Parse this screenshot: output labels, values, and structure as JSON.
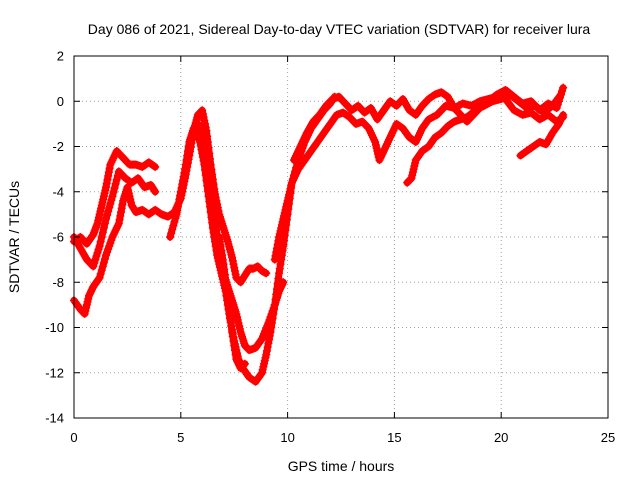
{
  "chart_data": {
    "type": "scatter",
    "title": "Day 086 of 2021, Sidereal Day-to-day VTEC variation (SDTVAR) for receiver lura",
    "xlabel": "GPS time / hours",
    "ylabel": "SDTVAR / TECUs",
    "xlim": [
      0,
      25
    ],
    "ylim": [
      -14,
      2
    ],
    "xticks": [
      0,
      5,
      10,
      15,
      20,
      25
    ],
    "yticks": [
      2,
      0,
      -2,
      -4,
      -6,
      -8,
      -10,
      -12,
      -14
    ],
    "grid": true,
    "marker": "plus",
    "color": "#ff0000",
    "series": [
      {
        "values": [
          [
            0.0,
            -6.2
          ],
          [
            0.3,
            -6.0
          ],
          [
            0.6,
            -6.3
          ],
          [
            0.9,
            -5.9
          ],
          [
            1.1,
            -5.4
          ],
          [
            1.3,
            -4.6
          ],
          [
            1.5,
            -3.8
          ],
          [
            1.7,
            -2.8
          ],
          [
            2.0,
            -2.2
          ],
          [
            2.3,
            -2.5
          ],
          [
            2.6,
            -2.8
          ],
          [
            2.9,
            -2.8
          ],
          [
            3.2,
            -2.9
          ],
          [
            3.5,
            -2.7
          ],
          [
            3.8,
            -2.9
          ]
        ]
      },
      {
        "values": [
          [
            0.0,
            -6.0
          ],
          [
            0.3,
            -6.5
          ],
          [
            0.6,
            -7.0
          ],
          [
            0.9,
            -7.3
          ],
          [
            1.2,
            -6.4
          ],
          [
            1.5,
            -5.2
          ],
          [
            1.8,
            -4.2
          ],
          [
            2.1,
            -3.1
          ],
          [
            2.4,
            -3.4
          ],
          [
            2.7,
            -3.6
          ],
          [
            3.0,
            -3.4
          ],
          [
            3.3,
            -3.8
          ],
          [
            3.6,
            -3.7
          ],
          [
            3.8,
            -4.0
          ]
        ]
      },
      {
        "values": [
          [
            0.0,
            -8.8
          ],
          [
            0.3,
            -9.2
          ],
          [
            0.5,
            -9.4
          ],
          [
            0.7,
            -8.6
          ],
          [
            0.9,
            -8.2
          ],
          [
            1.2,
            -7.8
          ],
          [
            1.5,
            -6.8
          ],
          [
            1.8,
            -6.0
          ],
          [
            2.1,
            -5.4
          ],
          [
            2.3,
            -4.4
          ],
          [
            2.5,
            -3.8
          ],
          [
            2.7,
            -4.6
          ],
          [
            2.9,
            -4.9
          ],
          [
            3.2,
            -4.8
          ],
          [
            3.5,
            -5.0
          ],
          [
            3.8,
            -4.8
          ],
          [
            4.1,
            -5.0
          ],
          [
            4.4,
            -5.1
          ],
          [
            4.7,
            -4.9
          ],
          [
            5.0,
            -4.3
          ],
          [
            5.2,
            -3.4
          ],
          [
            5.4,
            -2.4
          ],
          [
            5.6,
            -1.3
          ],
          [
            5.8,
            -0.6
          ],
          [
            6.0,
            -0.4
          ],
          [
            6.2,
            -1.3
          ],
          [
            6.4,
            -2.8
          ],
          [
            6.6,
            -4.1
          ],
          [
            6.8,
            -5.0
          ],
          [
            7.0,
            -5.6
          ],
          [
            7.2,
            -6.2
          ],
          [
            7.4,
            -6.9
          ],
          [
            7.6,
            -7.8
          ],
          [
            7.8,
            -8.0
          ],
          [
            8.0,
            -7.7
          ],
          [
            8.2,
            -7.4
          ],
          [
            8.4,
            -7.4
          ],
          [
            8.6,
            -7.3
          ],
          [
            8.8,
            -7.5
          ],
          [
            9.0,
            -7.6
          ]
        ]
      },
      {
        "values": [
          [
            4.5,
            -6.0
          ],
          [
            4.8,
            -5.0
          ],
          [
            5.0,
            -4.0
          ],
          [
            5.2,
            -3.0
          ],
          [
            5.4,
            -1.8
          ],
          [
            5.6,
            -1.2
          ],
          [
            5.8,
            -1.0
          ],
          [
            6.0,
            -1.4
          ],
          [
            6.2,
            -2.2
          ],
          [
            6.4,
            -3.6
          ],
          [
            6.6,
            -5.2
          ],
          [
            6.8,
            -6.6
          ],
          [
            7.0,
            -7.6
          ],
          [
            7.2,
            -8.2
          ],
          [
            7.4,
            -8.8
          ],
          [
            7.6,
            -9.4
          ],
          [
            7.8,
            -10.2
          ],
          [
            8.0,
            -10.8
          ],
          [
            8.2,
            -11.0
          ],
          [
            8.5,
            -10.9
          ],
          [
            8.8,
            -10.5
          ],
          [
            9.1,
            -9.8
          ],
          [
            9.4,
            -9.0
          ],
          [
            9.6,
            -8.4
          ],
          [
            9.8,
            -8.0
          ]
        ]
      },
      {
        "values": [
          [
            5.7,
            -1.2
          ],
          [
            5.9,
            -1.8
          ],
          [
            6.1,
            -2.8
          ],
          [
            6.3,
            -4.2
          ],
          [
            6.5,
            -5.6
          ],
          [
            6.7,
            -6.8
          ],
          [
            6.9,
            -7.6
          ],
          [
            7.1,
            -8.4
          ],
          [
            7.3,
            -9.6
          ],
          [
            7.5,
            -10.6
          ],
          [
            7.7,
            -11.4
          ],
          [
            7.9,
            -11.8
          ],
          [
            8.2,
            -12.2
          ],
          [
            8.5,
            -12.4
          ],
          [
            8.8,
            -12.0
          ],
          [
            9.0,
            -11.2
          ],
          [
            9.2,
            -10.2
          ],
          [
            9.4,
            -9.0
          ],
          [
            9.6,
            -7.6
          ],
          [
            9.8,
            -6.4
          ],
          [
            10.0,
            -5.0
          ],
          [
            10.2,
            -3.6
          ],
          [
            10.5,
            -2.6
          ],
          [
            10.8,
            -1.8
          ],
          [
            11.1,
            -1.2
          ],
          [
            11.4,
            -0.8
          ],
          [
            11.7,
            -0.4
          ],
          [
            12.0,
            -0.1
          ],
          [
            12.2,
            0.2
          ]
        ]
      },
      {
        "values": [
          [
            6.8,
            -6.0
          ],
          [
            7.0,
            -7.2
          ],
          [
            7.2,
            -8.6
          ],
          [
            7.4,
            -10.2
          ],
          [
            7.6,
            -11.4
          ],
          [
            7.8,
            -11.8
          ],
          [
            8.0,
            -11.6
          ]
        ]
      },
      {
        "values": [
          [
            9.4,
            -7.0
          ],
          [
            9.6,
            -6.0
          ],
          [
            9.8,
            -5.2
          ],
          [
            10.0,
            -4.4
          ],
          [
            10.2,
            -3.6
          ],
          [
            10.5,
            -3.0
          ],
          [
            10.8,
            -2.6
          ],
          [
            11.1,
            -2.2
          ],
          [
            11.4,
            -1.8
          ],
          [
            11.7,
            -1.4
          ],
          [
            12.0,
            -1.0
          ],
          [
            12.3,
            -0.6
          ],
          [
            12.6,
            -0.5
          ],
          [
            12.9,
            -0.7
          ],
          [
            13.2,
            -1.0
          ],
          [
            13.5,
            -0.9
          ],
          [
            13.8,
            -1.2
          ],
          [
            14.1,
            -1.8
          ],
          [
            14.3,
            -2.6
          ],
          [
            14.5,
            -2.2
          ],
          [
            14.8,
            -1.6
          ],
          [
            15.1,
            -1.0
          ],
          [
            15.4,
            -1.2
          ],
          [
            15.7,
            -1.6
          ],
          [
            16.0,
            -1.8
          ],
          [
            16.3,
            -1.2
          ],
          [
            16.6,
            -0.8
          ],
          [
            17.0,
            -0.6
          ],
          [
            17.4,
            -0.2
          ],
          [
            17.8,
            -0.3
          ],
          [
            18.2,
            -0.1
          ],
          [
            18.6,
            -0.2
          ],
          [
            19.0,
            0.0
          ],
          [
            19.4,
            0.1
          ],
          [
            19.8,
            0.2
          ],
          [
            20.2,
            0.1
          ],
          [
            20.6,
            -0.4
          ],
          [
            21.0,
            -0.6
          ],
          [
            21.4,
            -0.5
          ],
          [
            21.8,
            -0.8
          ],
          [
            22.2,
            -0.6
          ],
          [
            22.6,
            -0.9
          ],
          [
            22.9,
            -0.7
          ]
        ]
      },
      {
        "values": [
          [
            10.3,
            -2.6
          ],
          [
            10.6,
            -2.0
          ],
          [
            10.9,
            -1.4
          ],
          [
            11.2,
            -0.9
          ],
          [
            11.5,
            -0.6
          ],
          [
            11.8,
            -0.2
          ],
          [
            12.1,
            0.1
          ],
          [
            12.4,
            0.2
          ],
          [
            12.7,
            -0.1
          ],
          [
            13.0,
            -0.4
          ],
          [
            13.3,
            -0.2
          ],
          [
            13.6,
            -0.5
          ],
          [
            13.9,
            -0.3
          ],
          [
            14.2,
            -0.8
          ],
          [
            14.5,
            -0.4
          ],
          [
            14.8,
            0.0
          ],
          [
            15.1,
            -0.2
          ],
          [
            15.4,
            0.1
          ],
          [
            15.7,
            -0.4
          ],
          [
            16.0,
            -0.6
          ],
          [
            16.3,
            -0.2
          ],
          [
            16.6,
            0.1
          ],
          [
            16.9,
            0.3
          ],
          [
            17.2,
            0.4
          ],
          [
            17.5,
            0.2
          ],
          [
            17.8,
            -0.3
          ],
          [
            18.1,
            -0.6
          ],
          [
            18.4,
            -0.9
          ],
          [
            18.7,
            -0.6
          ],
          [
            19.0,
            -0.3
          ],
          [
            19.4,
            0.0
          ],
          [
            19.8,
            0.3
          ],
          [
            20.2,
            0.5
          ],
          [
            20.6,
            0.2
          ],
          [
            21.0,
            -0.1
          ],
          [
            21.4,
            0.0
          ],
          [
            21.8,
            -0.4
          ],
          [
            22.2,
            -0.1
          ],
          [
            22.6,
            -0.3
          ],
          [
            22.9,
            0.6
          ]
        ]
      },
      {
        "values": [
          [
            15.6,
            -3.6
          ],
          [
            15.8,
            -3.4
          ],
          [
            16.0,
            -2.6
          ],
          [
            16.3,
            -2.2
          ],
          [
            16.6,
            -2.0
          ],
          [
            16.9,
            -1.6
          ],
          [
            17.2,
            -1.4
          ],
          [
            17.5,
            -1.1
          ],
          [
            17.8,
            -0.9
          ],
          [
            18.1,
            -0.8
          ],
          [
            18.4,
            -0.7
          ],
          [
            18.8,
            -0.4
          ],
          [
            19.2,
            -0.2
          ],
          [
            19.6,
            0.0
          ],
          [
            20.0,
            0.1
          ],
          [
            20.4,
            0.3
          ],
          [
            20.8,
            0.0
          ],
          [
            21.2,
            -0.3
          ],
          [
            21.6,
            -0.2
          ],
          [
            22.0,
            -0.5
          ],
          [
            22.4,
            -0.2
          ],
          [
            22.8,
            0.3
          ]
        ]
      },
      {
        "values": [
          [
            20.9,
            -2.4
          ],
          [
            21.2,
            -2.2
          ],
          [
            21.5,
            -2.0
          ],
          [
            21.8,
            -1.8
          ],
          [
            22.1,
            -1.9
          ],
          [
            22.4,
            -1.4
          ],
          [
            22.7,
            -1.0
          ],
          [
            22.9,
            -0.6
          ]
        ]
      }
    ]
  }
}
